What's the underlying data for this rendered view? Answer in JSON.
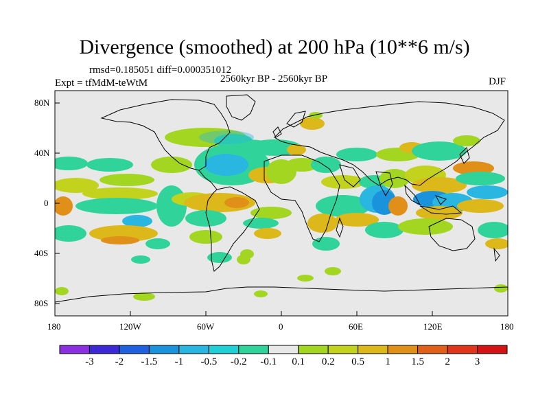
{
  "title": "Divergence (smoothed) at 200 hPa (10**6 m/s)",
  "stats": {
    "rmsd_label": "rmsd=",
    "rmsd": "0.185051",
    "diff_label": "diff=",
    "diff": "0.000351012"
  },
  "expt": "Expt = tfMdM-teWtM",
  "period": "2560kyr BP - 2560kyr BP",
  "season": "DJF",
  "lat_ticks": [
    "80N",
    "40N",
    "0",
    "40S",
    "80S"
  ],
  "lon_ticks": [
    "180",
    "120W",
    "60W",
    "0",
    "60E",
    "120E",
    "180"
  ],
  "colorbar": {
    "labels": [
      "-3",
      "-2",
      "-1.5",
      "-1",
      "-0.5",
      "-0.2",
      "-0.1",
      "0.1",
      "0.2",
      "0.5",
      "1",
      "1.5",
      "2",
      "3"
    ],
    "colors": [
      "#8c2fe0",
      "#3c28d6",
      "#1f5fe0",
      "#1a93dc",
      "#29b6e0",
      "#21cfd6",
      "#30d49a",
      "#e8e8e8",
      "#a2d620",
      "#c3d21c",
      "#dcb81a",
      "#e09018",
      "#e0601a",
      "#e0351a",
      "#d41414"
    ]
  },
  "map_colors": {
    "background": "#e8e8e8",
    "coast": "#000000"
  }
}
